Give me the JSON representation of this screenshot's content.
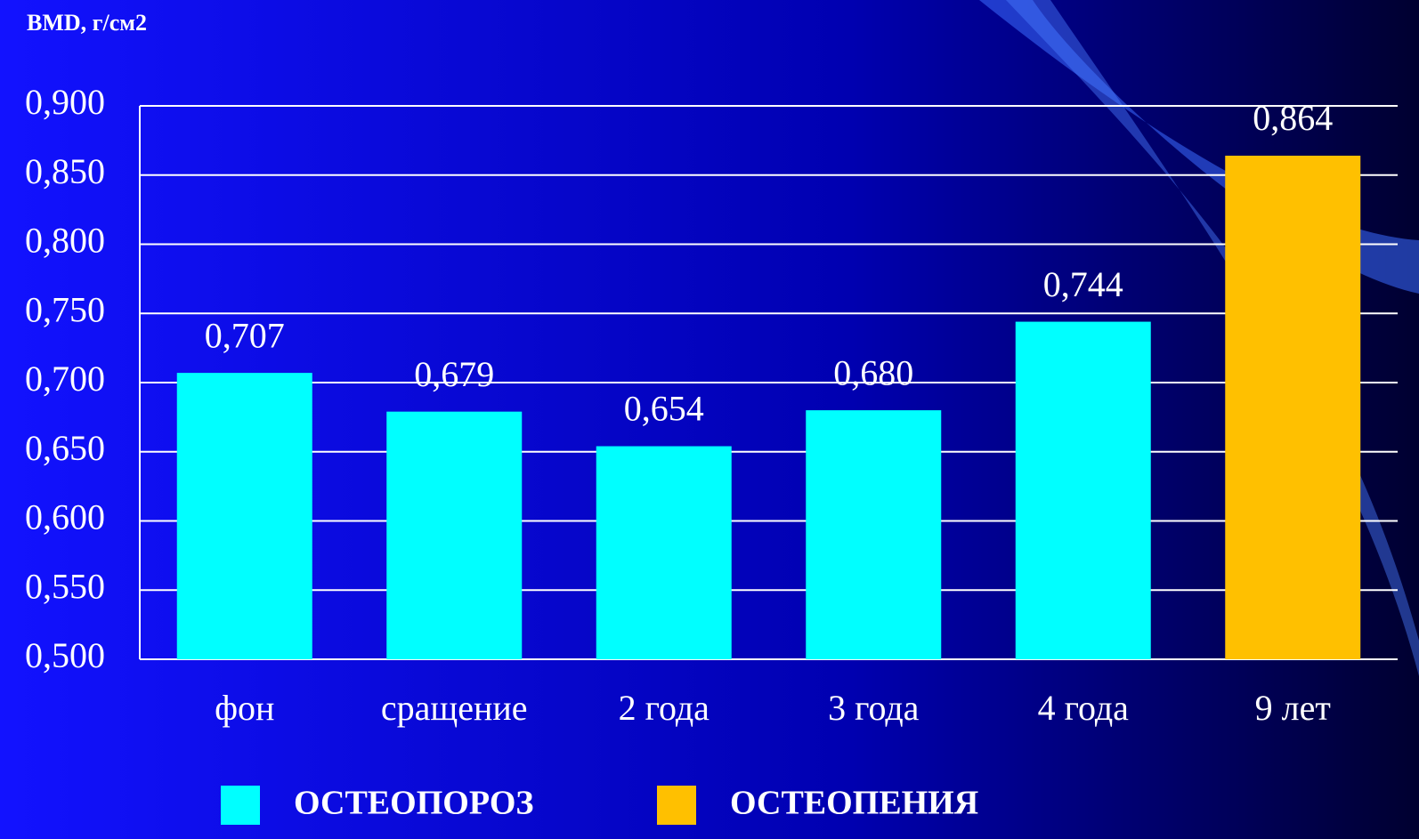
{
  "chart_data": {
    "type": "bar",
    "y_axis_title": "BMD, г/см2",
    "categories": [
      "фон",
      "сращение",
      "2 года",
      "3 года",
      "4 года",
      "9 лет"
    ],
    "series": [
      {
        "name": "ОСТЕОПОРОЗ",
        "color": "#00ffff",
        "values": [
          0.707,
          0.679,
          0.654,
          0.68,
          0.744,
          null
        ],
        "value_labels": [
          "0,707",
          "0,679",
          "0,654",
          "0,680",
          "0,744",
          null
        ]
      },
      {
        "name": "ОСТЕОПЕНИЯ",
        "color": "#ffc000",
        "values": [
          null,
          null,
          null,
          null,
          null,
          0.864
        ],
        "value_labels": [
          null,
          null,
          null,
          null,
          null,
          "0,864"
        ]
      }
    ],
    "ylim": [
      0.5,
      0.9
    ],
    "yticks": [
      {
        "value": 0.5,
        "label": "0,500"
      },
      {
        "value": 0.55,
        "label": "0,550"
      },
      {
        "value": 0.6,
        "label": "0,600"
      },
      {
        "value": 0.65,
        "label": "0,650"
      },
      {
        "value": 0.7,
        "label": "0,700"
      },
      {
        "value": 0.75,
        "label": "0,750"
      },
      {
        "value": 0.8,
        "label": "0,800"
      },
      {
        "value": 0.85,
        "label": "0,850"
      },
      {
        "value": 0.9,
        "label": "0,900"
      }
    ],
    "grid": true,
    "legend": "bottom"
  }
}
